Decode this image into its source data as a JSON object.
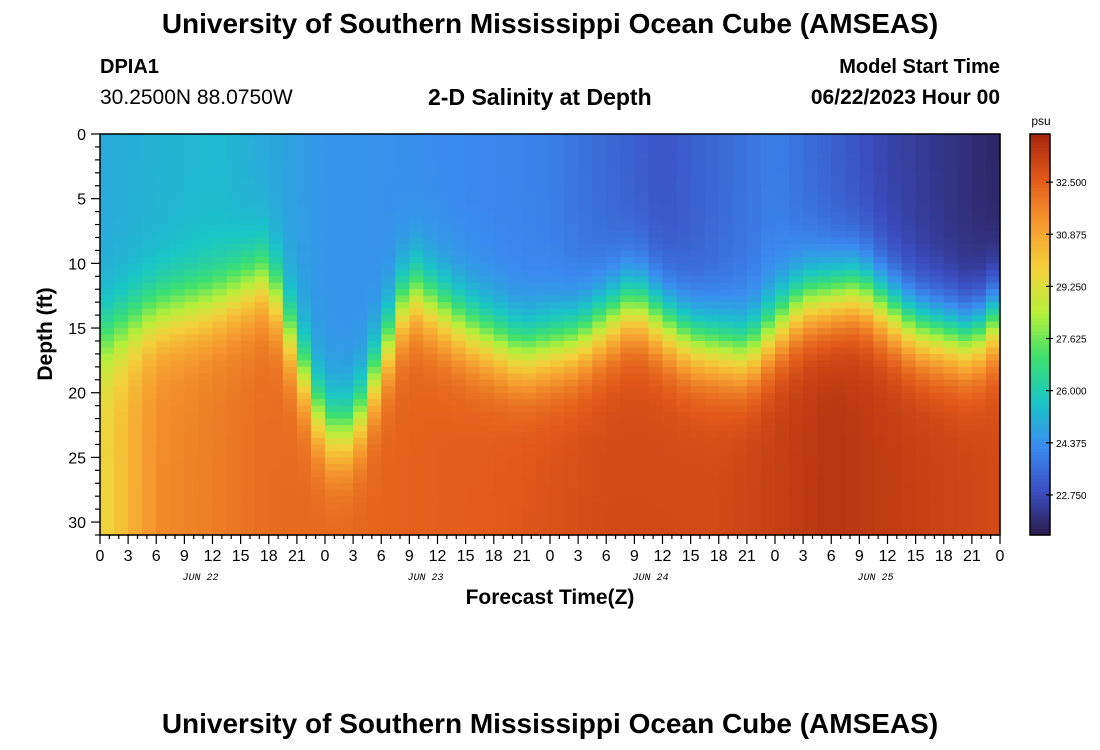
{
  "header": {
    "title": "University of Southern Mississippi Ocean Cube (AMSEAS)",
    "station_id": "DPIA1",
    "station_coords": "30.2500N  88.0750W",
    "subtitle": "2-D Salinity at Depth",
    "model_label": "Model Start Time",
    "model_start": "06/22/2023 Hour 00"
  },
  "footer": {
    "title": "University of Southern Mississippi Ocean Cube (AMSEAS)"
  },
  "colors": {
    "colormap": [
      "#2a1b4a",
      "#3b4fc4",
      "#3a8cf0",
      "#19c6c6",
      "#3ee06e",
      "#b6f03a",
      "#f4d03a",
      "#f59a2e",
      "#e25a1a",
      "#a8260e"
    ]
  },
  "chart_data": {
    "type": "heatmap",
    "title": "2-D Salinity at Depth",
    "xlabel": "Forecast Time(Z)",
    "ylabel": "Depth (ft)",
    "x_range_hours": [
      0,
      96
    ],
    "ylim": [
      0,
      31
    ],
    "y_ticks": [
      "0",
      "5",
      "10",
      "15",
      "20",
      "25",
      "30"
    ],
    "x_tick_labels": [
      "0",
      "3",
      "6",
      "9",
      "12",
      "15",
      "18",
      "21",
      "0",
      "3",
      "6",
      "9",
      "12",
      "15",
      "18",
      "21",
      "0",
      "3",
      "6",
      "9",
      "12",
      "15",
      "18",
      "21",
      "0",
      "3",
      "6",
      "9",
      "12",
      "15",
      "18",
      "21",
      "0"
    ],
    "day_labels": [
      "JUN 22",
      "JUN 23",
      "JUN 24",
      "JUN 25"
    ],
    "colorbar": {
      "unit": "psu",
      "range": [
        21.5,
        34.0
      ],
      "ticks": [
        "32.500",
        "30.875",
        "29.250",
        "27.625",
        "26.000",
        "24.375",
        "22.750"
      ]
    },
    "halocline_depth_ft": {
      "hours": [
        0,
        6,
        12,
        18,
        24,
        27,
        33,
        39,
        45,
        51,
        57,
        63,
        69,
        75,
        81,
        87,
        93,
        96
      ],
      "values": [
        16,
        14,
        13,
        11,
        23,
        23,
        12,
        15,
        17,
        16,
        13,
        16,
        17,
        13,
        12,
        15,
        16,
        14
      ]
    },
    "surface_salinity_psu": {
      "hours": [
        0,
        12,
        24,
        36,
        48,
        60,
        72,
        84,
        96
      ],
      "values": [
        25.0,
        25.4,
        24.5,
        24.3,
        24.0,
        23.0,
        24.0,
        22.6,
        21.8
      ]
    },
    "bottom_salinity_psu": {
      "hours": [
        0,
        6,
        18,
        30,
        42,
        54,
        66,
        78,
        90,
        96
      ],
      "values": [
        29.5,
        31.5,
        32.2,
        32.4,
        32.6,
        33.0,
        33.0,
        33.6,
        33.2,
        33.0
      ]
    }
  }
}
